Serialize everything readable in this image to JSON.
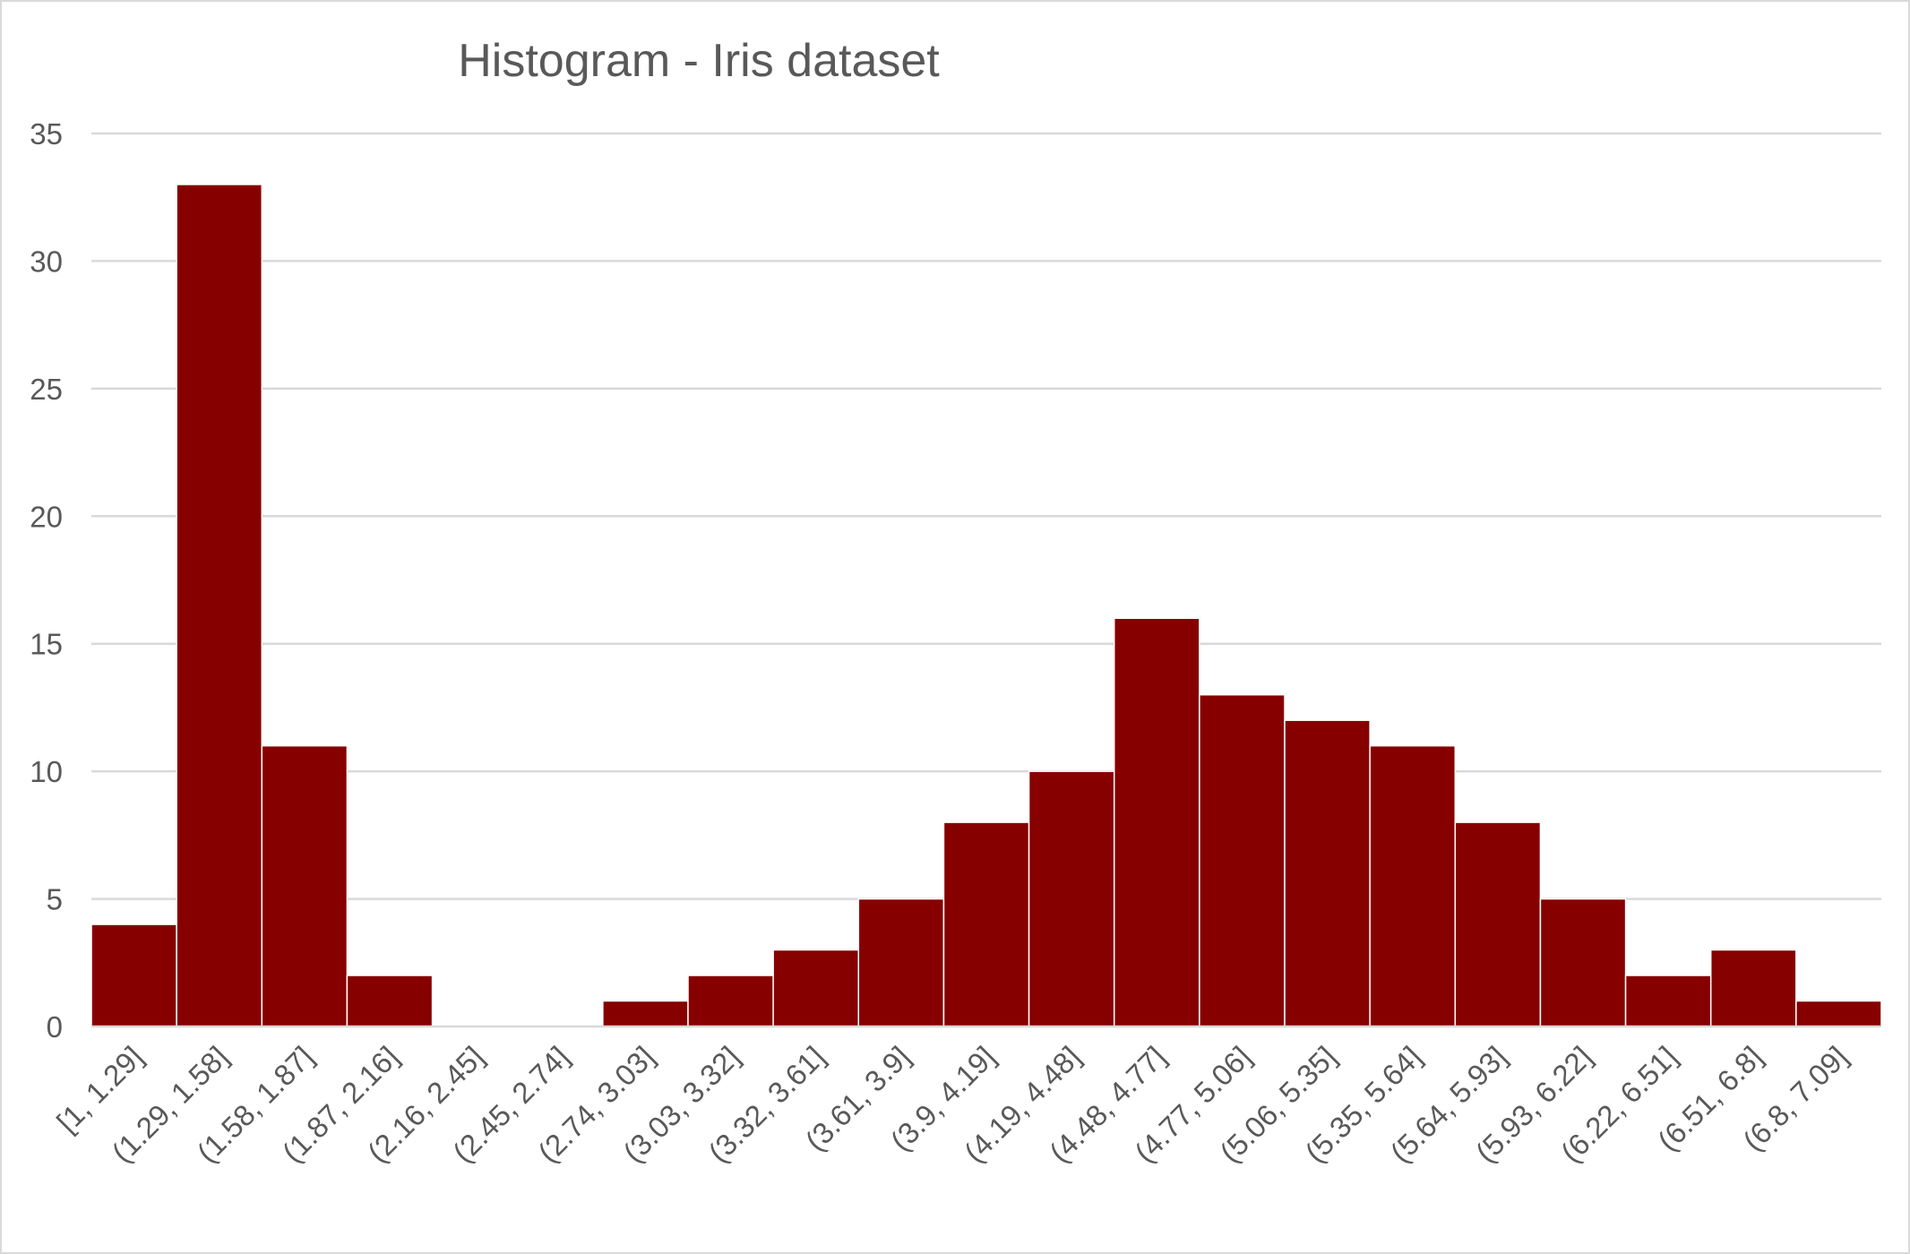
{
  "chart_data": {
    "type": "bar",
    "title": "Histogram - Iris dataset",
    "xlabel": "",
    "ylabel": "",
    "categories": [
      "[1, 1.29]",
      "(1.29, 1.58]",
      "(1.58, 1.87]",
      "(1.87, 2.16]",
      "(2.16, 2.45]",
      "(2.45, 2.74]",
      "(2.74, 3.03]",
      "(3.03, 3.32]",
      "(3.32, 3.61]",
      "(3.61, 3.9]",
      "(3.9, 4.19]",
      "(4.19, 4.48]",
      "(4.48, 4.77]",
      "(4.77, 5.06]",
      "(5.06, 5.35]",
      "(5.35, 5.64]",
      "(5.64, 5.93]",
      "(5.93, 6.22]",
      "(6.22, 6.51]",
      "(6.51, 6.8]",
      "(6.8, 7.09]"
    ],
    "values": [
      4,
      33,
      11,
      2,
      0,
      0,
      1,
      2,
      3,
      5,
      8,
      10,
      16,
      13,
      12,
      11,
      8,
      5,
      2,
      3,
      1
    ],
    "ylim": [
      0,
      35
    ],
    "yticks": [
      0,
      5,
      10,
      15,
      20,
      25,
      30,
      35
    ],
    "grid": true,
    "legend": "none",
    "bar_color": "#870000",
    "gridline_color": "#d9d9d9",
    "text_color": "#595959"
  }
}
